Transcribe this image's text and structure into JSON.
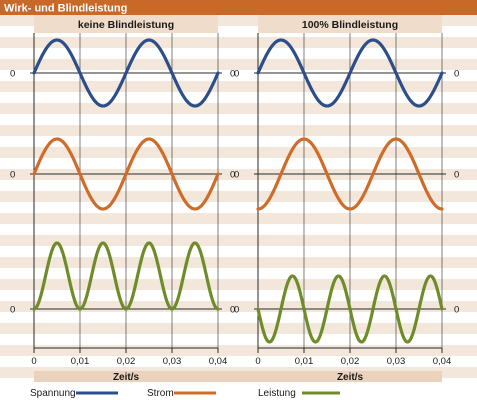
{
  "title": "Wirk- und Blindleistung",
  "colors": {
    "header_bar": "#c8692a",
    "stripe_light": "#f3e6da",
    "stripe_white": "#ffffff",
    "panel_header": "#f0dccb",
    "spannung": "#2c4e8a",
    "strom": "#cf6c2a",
    "leistung": "#6e8c2a",
    "axis": "#2a2a2a",
    "footer": "#ead2bd"
  },
  "legend": [
    {
      "name": "Spannung",
      "color_key": "spannung"
    },
    {
      "name": "Strom",
      "color_key": "strom"
    },
    {
      "name": "Leistung",
      "color_key": "leistung"
    }
  ],
  "chart_data": [
    {
      "type": "line",
      "title": "keine Blindleistung",
      "xlabel": "Zeit/s",
      "xlim": [
        0,
        0.04
      ],
      "x_ticks": [
        0,
        0.01,
        0.02,
        0.03,
        0.04
      ],
      "x_tick_labels": [
        "0",
        "0,01",
        "0,02",
        "0,03",
        "0,04"
      ],
      "zero_label": "0",
      "series": [
        {
          "name": "Spannung",
          "amplitude": 1,
          "frequency_hz": 50,
          "phase_deg": 0
        },
        {
          "name": "Strom",
          "amplitude": 1,
          "frequency_hz": 50,
          "phase_deg": 0
        },
        {
          "name": "Leistung",
          "amplitude": 1,
          "frequency_hz": 50,
          "phase_deg": 0
        }
      ]
    },
    {
      "type": "line",
      "title": "100% Blindleistung",
      "xlabel": "Zeit/s",
      "xlim": [
        0,
        0.04
      ],
      "x_ticks": [
        0,
        0.01,
        0.02,
        0.03,
        0.04
      ],
      "x_tick_labels": [
        "0",
        "0,01",
        "0,02",
        "0,03",
        "0,04"
      ],
      "zero_label": "0",
      "series": [
        {
          "name": "Spannung",
          "amplitude": 1,
          "frequency_hz": 50,
          "phase_deg": 0
        },
        {
          "name": "Strom",
          "amplitude": 1,
          "frequency_hz": 50,
          "phase_deg": -90
        },
        {
          "name": "Leistung",
          "amplitude": 1,
          "frequency_hz": 50,
          "phase_deg": -90
        }
      ]
    }
  ]
}
